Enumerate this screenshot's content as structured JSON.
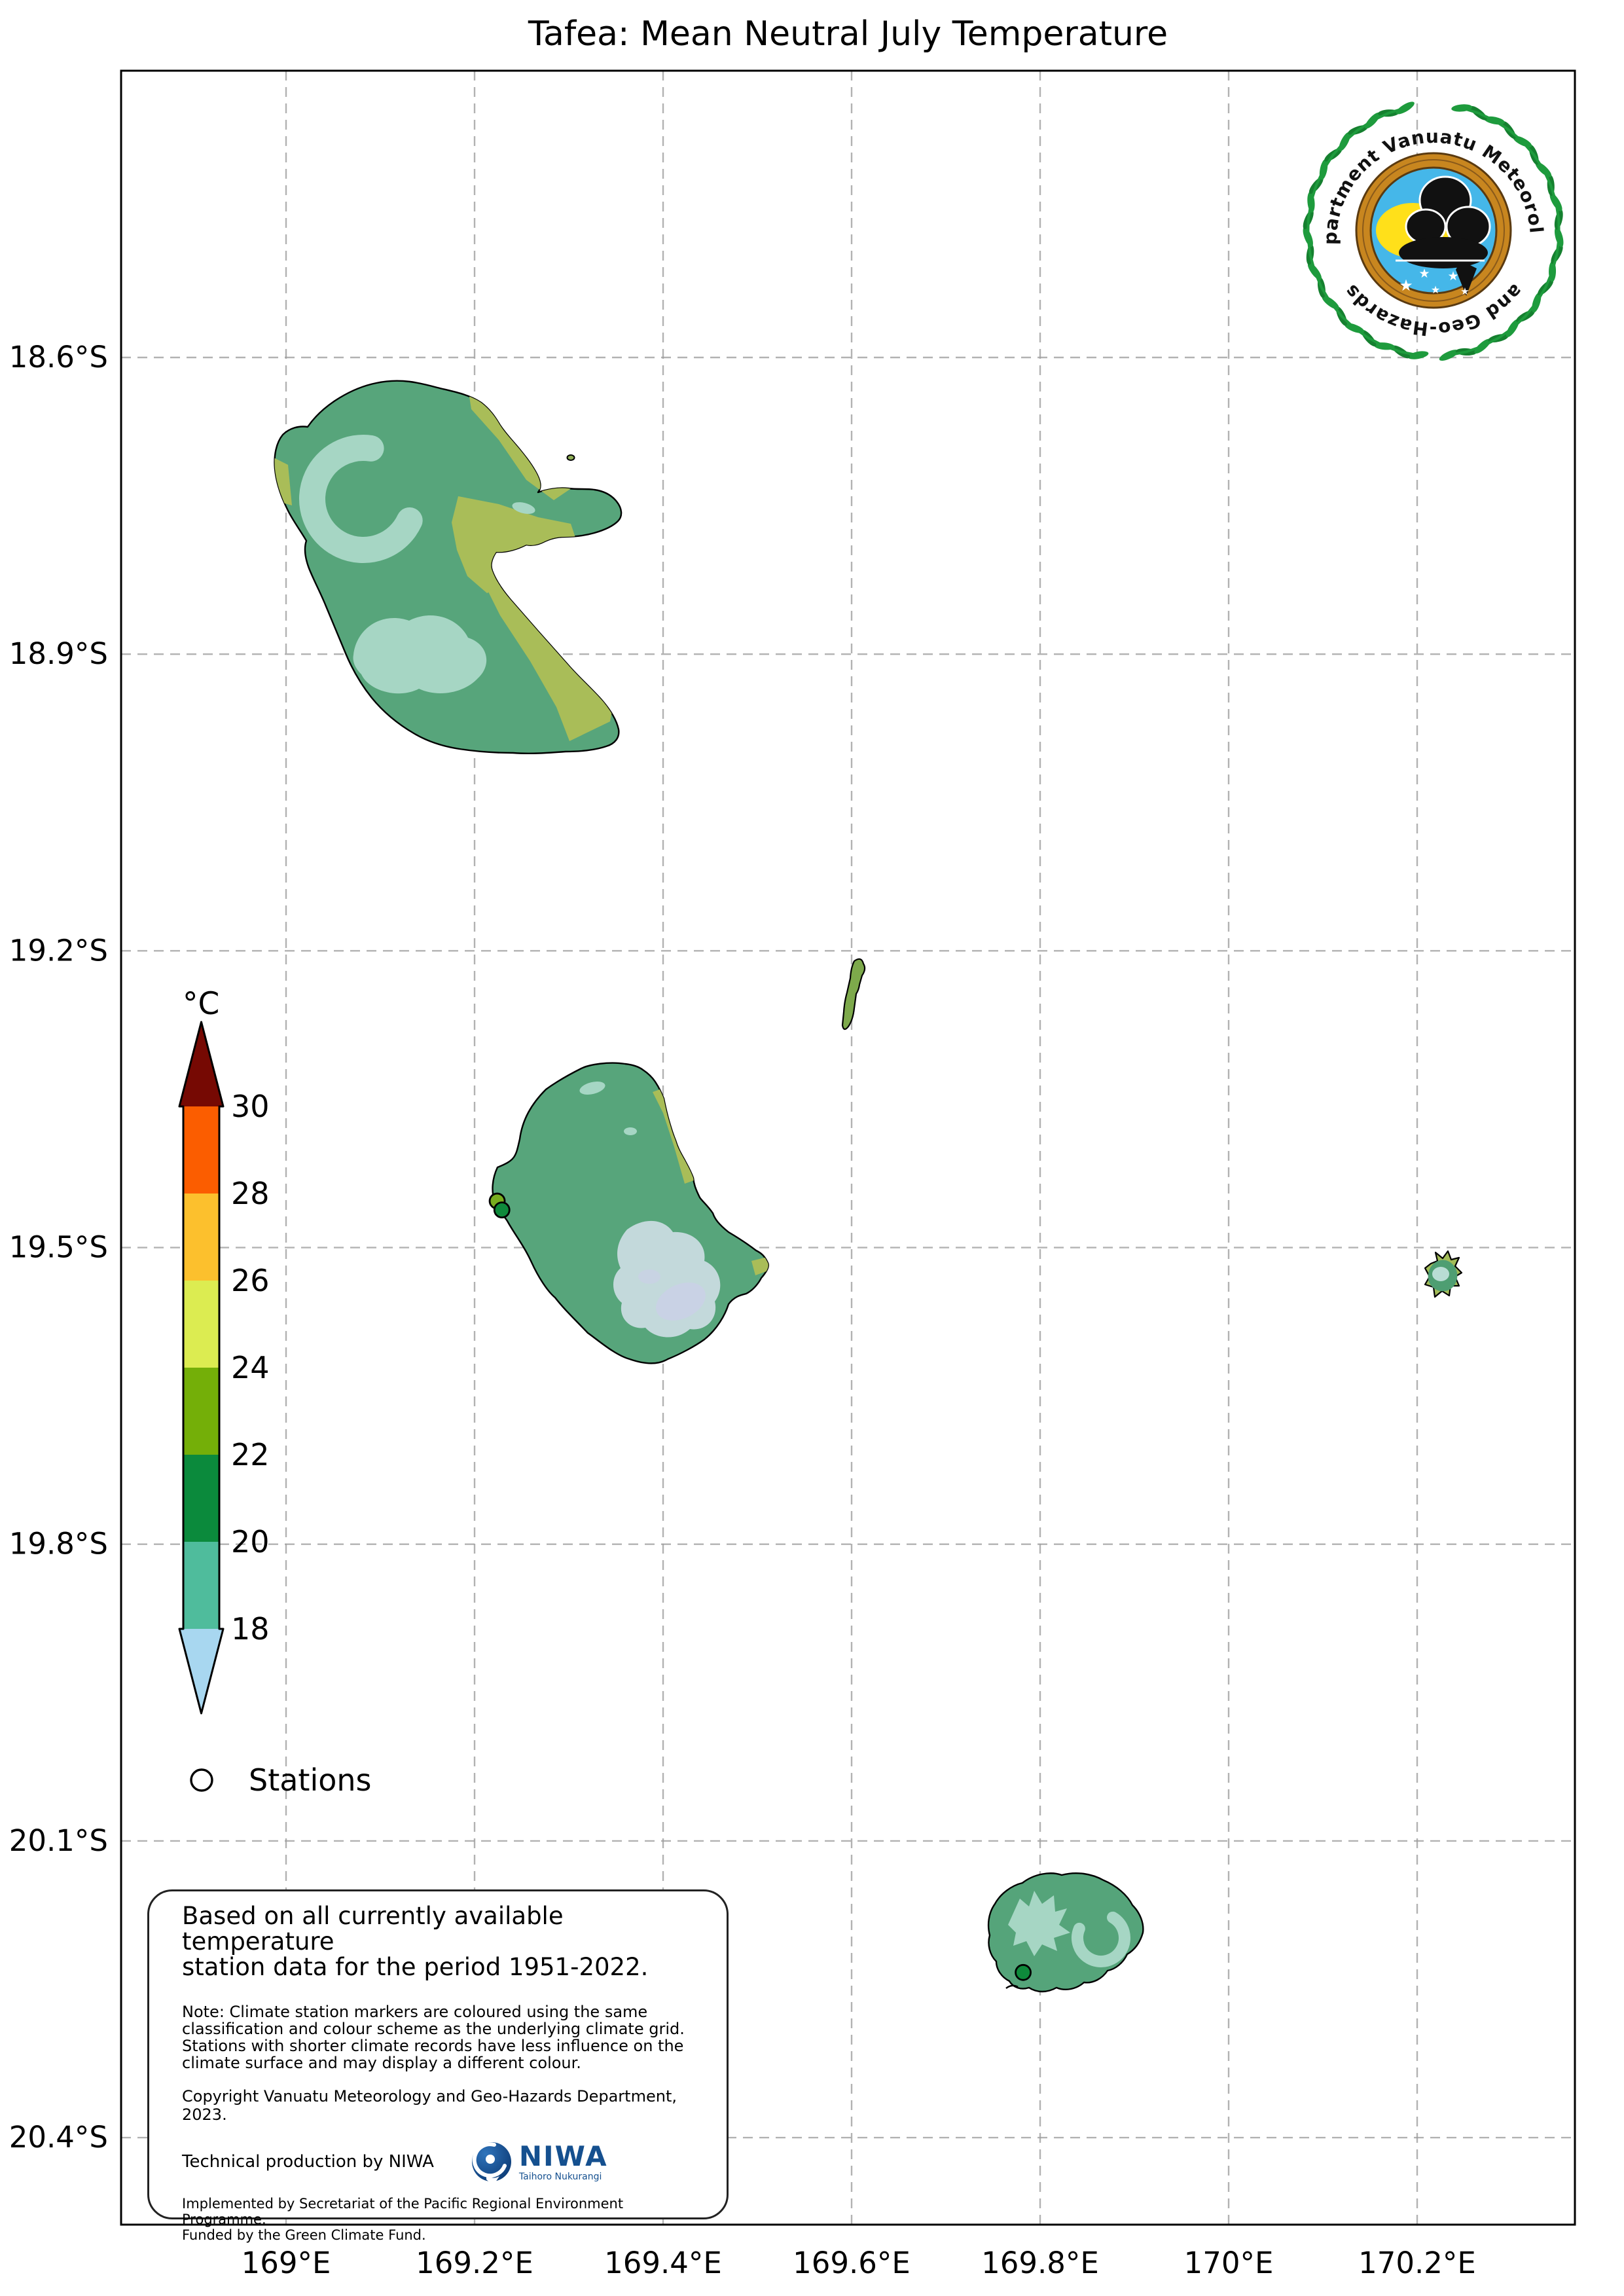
{
  "title": "Tafea: Mean Neutral July Temperature",
  "axes": {
    "lon_ticks": [
      {
        "deg": 169.0,
        "label": "169°E"
      },
      {
        "deg": 169.2,
        "label": "169.2°E"
      },
      {
        "deg": 169.4,
        "label": "169.4°E"
      },
      {
        "deg": 169.6,
        "label": "169.6°E"
      },
      {
        "deg": 169.8,
        "label": "169.8°E"
      },
      {
        "deg": 170.0,
        "label": "170°E"
      },
      {
        "deg": 170.2,
        "label": "170.2°E"
      }
    ],
    "lat_ticks": [
      {
        "deg": 18.6,
        "label": "18.6°S"
      },
      {
        "deg": 18.9,
        "label": "18.9°S"
      },
      {
        "deg": 19.2,
        "label": "19.2°S"
      },
      {
        "deg": 19.5,
        "label": "19.5°S"
      },
      {
        "deg": 19.8,
        "label": "19.8°S"
      },
      {
        "deg": 20.1,
        "label": "20.1°S"
      },
      {
        "deg": 20.4,
        "label": "20.4°S"
      }
    ]
  },
  "colorbar": {
    "title": "°C",
    "levels": [
      "30",
      "28",
      "26",
      "24",
      "22",
      "20",
      "18"
    ],
    "band_colors": [
      "#760903",
      "#FB5D00",
      "#FCC02D",
      "#DCEC51",
      "#74AF08",
      "#0B8A3C",
      "#4FBC9C",
      "#A8D7F0"
    ]
  },
  "legend": {
    "stations_label": "Stations"
  },
  "stations": [
    {
      "lon": 169.224,
      "lat": 19.453,
      "color": "#79AD1F"
    },
    {
      "lon": 169.229,
      "lat": 19.462,
      "color": "#0E8A3B"
    },
    {
      "lon": 169.782,
      "lat": 20.233,
      "color": "#0E8A3B"
    }
  ],
  "emblem": {
    "arc_text_top": "Department Vanuatu Meteorology",
    "arc_text_bottom": "and Geo-Hazards"
  },
  "niwa": {
    "wordmark": "NIWA",
    "tagline": "Taihoro Nukurangi"
  },
  "infobox": {
    "heading": "Based on all currently available temperature\nstation data for the period 1951-2022.",
    "note": "Note: Climate station markers are coloured using the same\nclassification and colour scheme as the underlying climate grid.\nStations with shorter climate records have less influence on the\nclimate surface and may display a different colour.",
    "copyright": "Copyright Vanuatu Meteorology and Geo-Hazards Department, 2023.",
    "technical": "Technical production by NIWA",
    "implemented": "Implemented by Secretariat of the Pacific Regional Environment Programme.\nFunded by the Green Climate Fund."
  },
  "chart_data": {
    "type": "map",
    "region_shown": "Tafea Province, Vanuatu",
    "islands_depicted": [
      "Erromango",
      "Aniwa",
      "Tanna",
      "Futuna",
      "Aneityum"
    ],
    "temperature_scale_c": {
      "tick_values": [
        30,
        28,
        26,
        24,
        22,
        20,
        18
      ],
      "open_above": true,
      "open_below": true
    },
    "lon_range_deg_e": [
      168.825,
      170.37
    ],
    "lat_range_deg_s": [
      18.31,
      20.49
    ],
    "grid": "dashed",
    "stations_plotted": [
      {
        "lon_e": 169.224,
        "lat_s": 19.453,
        "class_c": "22-24"
      },
      {
        "lon_e": 169.229,
        "lat_s": 19.462,
        "class_c": "20-22"
      },
      {
        "lon_e": 169.782,
        "lat_s": 20.233,
        "class_c": "20-22"
      }
    ]
  }
}
